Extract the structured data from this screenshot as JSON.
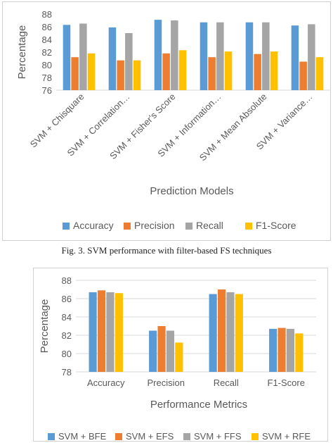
{
  "colors": {
    "blue": "#5B9BD5",
    "orange": "#ED7D31",
    "gray": "#A5A5A5",
    "yellow": "#FFC000",
    "axis_text": "#595959",
    "gridline": "#d9d9d9"
  },
  "caption": "Fig. 3. SVM performance with filter-based FS techniques",
  "chart_data": [
    {
      "type": "bar",
      "categories": [
        "SVM + Chisquare",
        "SVM + Correlation…",
        "SVM + Fisher's Score",
        "SVM + Information…",
        "SVM + Mean Absolute",
        "SVM + Variance…"
      ],
      "series": [
        {
          "name": "Accuracy",
          "color": "#5B9BD5",
          "values": [
            86.3,
            85.9,
            87.1,
            86.7,
            86.7,
            86.2
          ]
        },
        {
          "name": "Precision",
          "color": "#ED7D31",
          "values": [
            81.2,
            80.7,
            81.8,
            81.2,
            81.7,
            80.5
          ]
        },
        {
          "name": "Recall",
          "color": "#A5A5A5",
          "values": [
            86.5,
            85.0,
            87.0,
            86.7,
            86.7,
            86.4
          ]
        },
        {
          "name": "F1-Score",
          "color": "#FFC000",
          "values": [
            81.8,
            80.7,
            82.3,
            82.1,
            82.1,
            81.2
          ]
        }
      ],
      "xlabel": "Prediction Models",
      "ylabel": "Percentage",
      "ylim": [
        76,
        88
      ],
      "yticks": [
        "76",
        "78",
        "80",
        "82",
        "84",
        "86",
        "88"
      ],
      "grid": false,
      "legend_position": "bottom"
    },
    {
      "type": "bar",
      "categories": [
        "Accuracy",
        "Precision",
        "Recall",
        "F1-Score"
      ],
      "series": [
        {
          "name": "SVM + BFE",
          "color": "#5B9BD5",
          "values": [
            86.7,
            82.5,
            86.5,
            82.7
          ]
        },
        {
          "name": "SVM + EFS",
          "color": "#ED7D31",
          "values": [
            86.9,
            83.0,
            87.0,
            82.8
          ]
        },
        {
          "name": "SVM + FFS",
          "color": "#A5A5A5",
          "values": [
            86.7,
            82.5,
            86.7,
            82.7
          ]
        },
        {
          "name": "SVM + RFE",
          "color": "#FFC000",
          "values": [
            86.6,
            81.2,
            86.5,
            82.2
          ]
        }
      ],
      "xlabel": "Performance Metrics",
      "ylabel": "Percentage",
      "ylim": [
        78,
        88
      ],
      "yticks": [
        "78",
        "80",
        "82",
        "84",
        "86",
        "88"
      ],
      "grid": true,
      "legend_position": "bottom"
    }
  ]
}
